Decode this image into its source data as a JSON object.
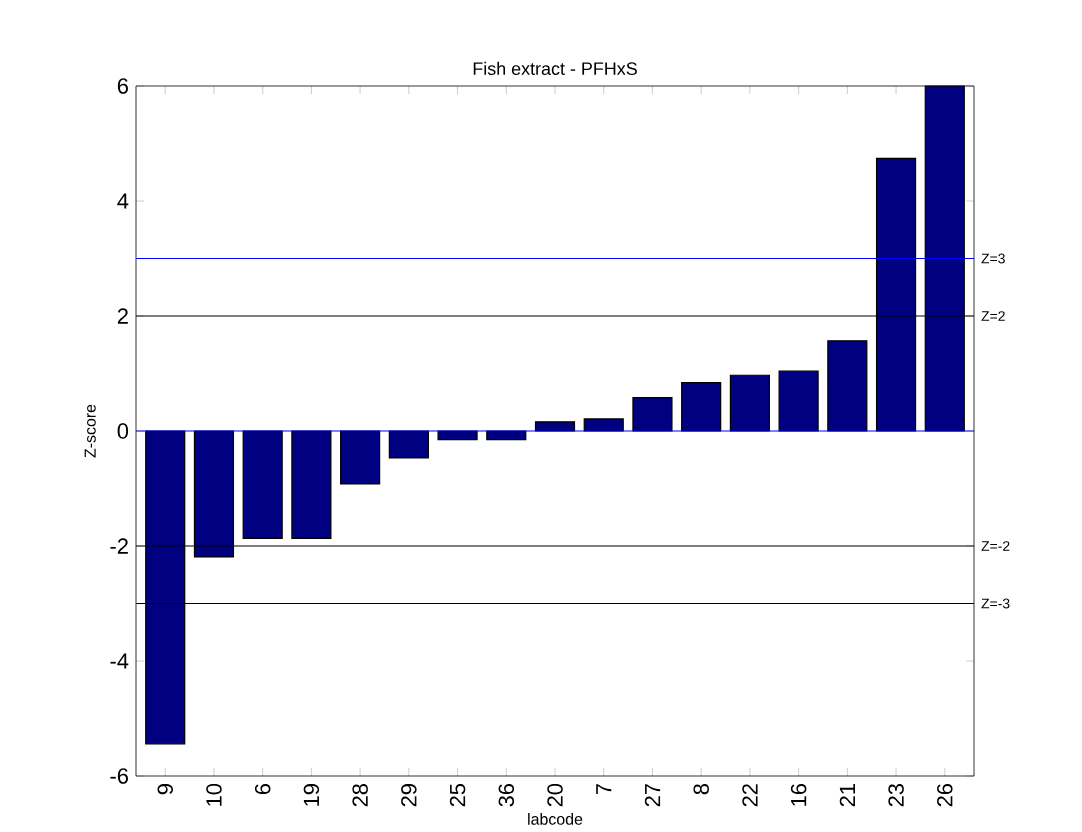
{
  "chart_data": {
    "type": "bar",
    "title": "Fish extract - PFHxS",
    "xlabel": "labcode",
    "ylabel": "Z-score",
    "categories": [
      "9",
      "10",
      "6",
      "19",
      "28",
      "29",
      "25",
      "36",
      "20",
      "7",
      "27",
      "8",
      "22",
      "16",
      "21",
      "23",
      "26"
    ],
    "values": [
      -5.44,
      -2.19,
      -1.87,
      -1.87,
      -0.92,
      -0.47,
      -0.15,
      -0.15,
      0.16,
      0.21,
      0.58,
      0.84,
      0.97,
      1.04,
      1.57,
      4.74,
      6
    ],
    "color": "#000080",
    "ylim": [
      -6,
      6
    ],
    "yticks": [
      -6,
      -4,
      -2,
      0,
      2,
      4,
      6
    ],
    "grid": false,
    "ref_lines": [
      {
        "axis": "y",
        "value": 3,
        "label": "Z=3",
        "color": "#0000ff"
      },
      {
        "axis": "y",
        "value": 2,
        "label": "Z=2",
        "color": "#000000"
      },
      {
        "axis": "y",
        "value": 0,
        "color": "#0000ff"
      },
      {
        "axis": "y",
        "value": -2,
        "label": "Z=-2",
        "color": "#000000"
      },
      {
        "axis": "y",
        "value": -3,
        "label": "Z=-3",
        "color": "#000000"
      }
    ]
  }
}
